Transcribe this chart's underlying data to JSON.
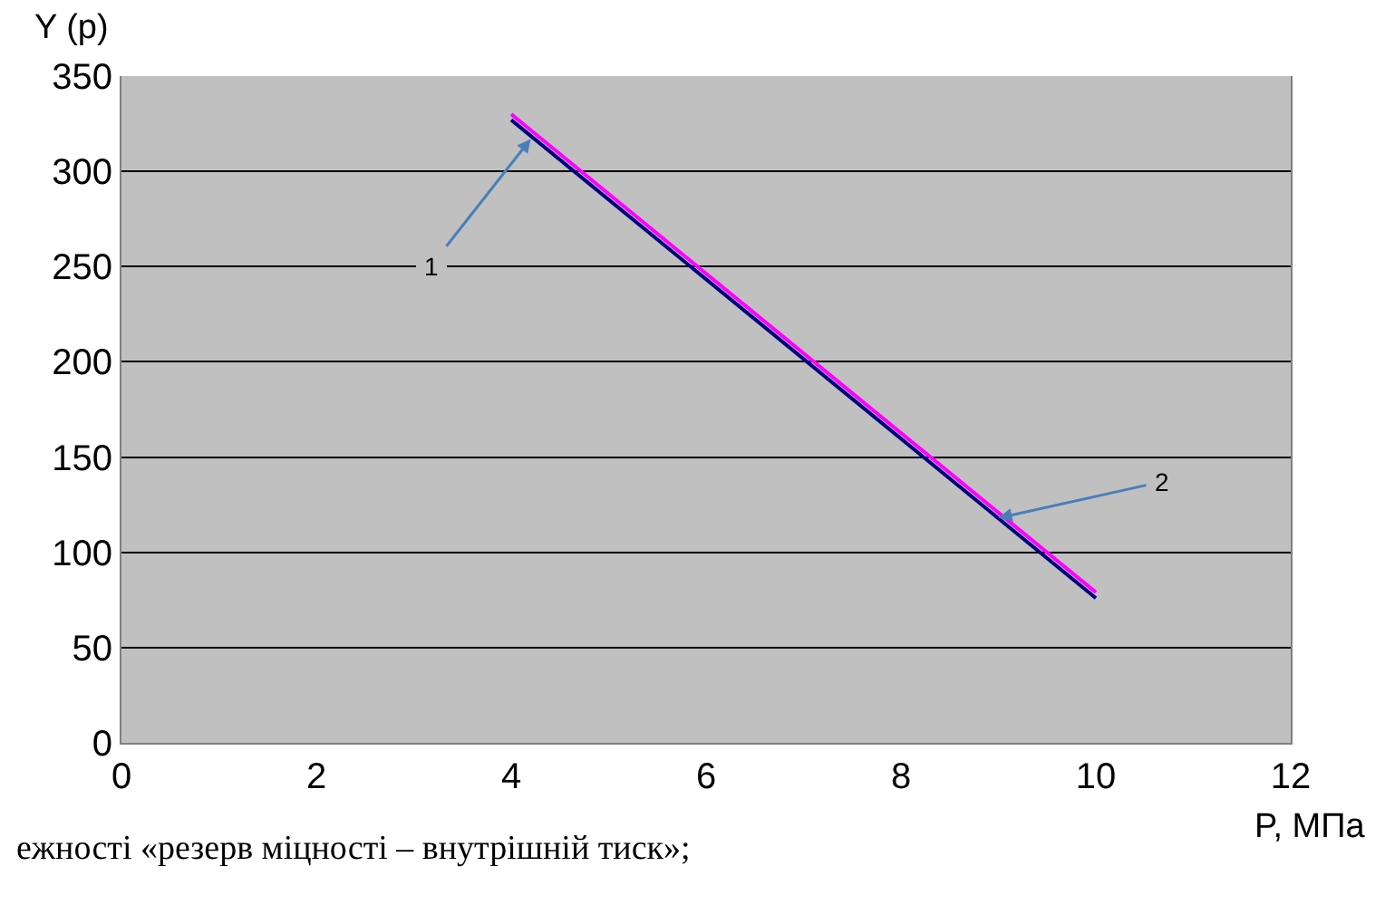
{
  "chart_data": {
    "type": "line",
    "xlabel": "P, МПа",
    "ylabel": "Y (p)",
    "series": [
      {
        "color": "#000080",
        "values": [
          327,
          76
        ]
      },
      {
        "color": "#ff00ff",
        "values": [
          330,
          79
        ]
      }
    ],
    "x": [
      4,
      10
    ],
    "xlim": [
      0,
      12
    ],
    "xticks": [
      0,
      2,
      4,
      6,
      8,
      10,
      12
    ],
    "ylim": [
      0,
      350
    ],
    "yticks": [
      0,
      50,
      100,
      150,
      200,
      250,
      300,
      350
    ],
    "grid": "y",
    "marker": "none",
    "line_style": "solid",
    "annotations": [
      {
        "text": "1",
        "x": 4.2,
        "y": 317
      },
      {
        "text": "2",
        "x": 9.0,
        "y": 118
      },
      "ежності «резерв міцності – внутрішній тиск»;"
    ]
  }
}
